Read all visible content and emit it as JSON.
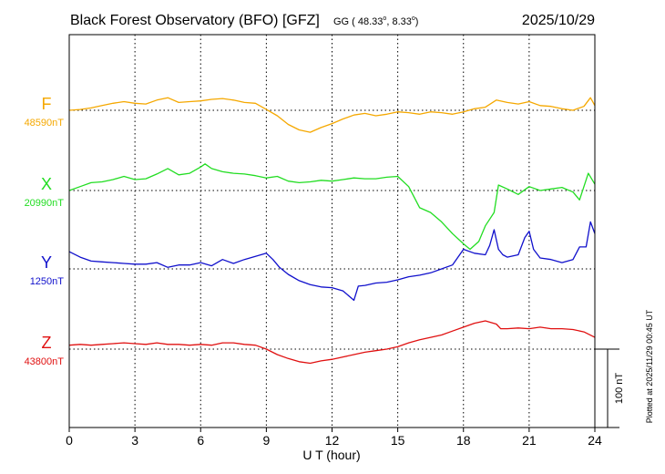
{
  "chart_data": {
    "type": "line",
    "title": "Black Forest Observatory (BFO)  [GFZ]",
    "coords": {
      "prefix": "GG ( 48.33",
      "lon": "8.33"
    },
    "date": "2025/10/29",
    "xlabel": "U T (hour)",
    "xlim": [
      0,
      24
    ],
    "xticks": [
      0,
      3,
      6,
      9,
      12,
      15,
      18,
      21,
      24
    ],
    "grid": true,
    "scale_label": "100 nT",
    "scale_nT": 100,
    "footnote": "Plotted at 2025/11/29 00:45 UT",
    "series": [
      {
        "name": "F",
        "baseline_label": "48590nT",
        "baseline": 48590,
        "color": "#f5a800",
        "x": [
          0,
          0.5,
          1,
          1.5,
          2,
          2.5,
          3,
          3.5,
          4,
          4.5,
          5,
          5.5,
          6,
          6.5,
          7,
          7.5,
          8,
          8.5,
          9,
          9.5,
          10,
          10.5,
          11,
          11.5,
          12,
          12.5,
          13,
          13.5,
          14,
          14.5,
          15,
          15.5,
          16,
          16.5,
          17,
          17.5,
          18,
          18.5,
          19,
          19.5,
          20,
          20.5,
          21,
          21.5,
          22,
          22.5,
          23,
          23.5,
          23.8,
          24
        ],
        "values": [
          48590,
          48591,
          48593,
          48596,
          48599,
          48601,
          48599,
          48598,
          48603,
          48606,
          48600,
          48601,
          48602,
          48604,
          48605,
          48603,
          48600,
          48599,
          48591,
          48583,
          48572,
          48565,
          48562,
          48568,
          48573,
          48579,
          48584,
          48586,
          48583,
          48585,
          48588,
          48587,
          48585,
          48588,
          48587,
          48585,
          48588,
          48592,
          48594,
          48603,
          48600,
          48598,
          48601,
          48596,
          48595,
          48592,
          48590,
          48595,
          48606,
          48596
        ]
      },
      {
        "name": "X",
        "baseline_label": "20990nT",
        "baseline": 20990,
        "color": "#22dd22",
        "x": [
          0,
          0.5,
          1,
          1.5,
          2,
          2.5,
          3,
          3.5,
          4,
          4.5,
          5,
          5.5,
          6,
          6.2,
          6.5,
          7,
          7.5,
          8,
          8.5,
          9,
          9.5,
          10,
          10.5,
          11,
          11.5,
          12,
          12.5,
          13,
          13.5,
          14,
          14.5,
          15,
          15.5,
          16,
          16.5,
          17,
          17.5,
          18,
          18.3,
          18.7,
          19,
          19.4,
          19.6,
          20,
          20.5,
          21,
          21.5,
          22,
          22.5,
          23,
          23.3,
          23.7,
          24
        ],
        "values": [
          20990,
          20995,
          21000,
          21001,
          21004,
          21008,
          21004,
          21005,
          21011,
          21018,
          21010,
          21012,
          21020,
          21024,
          21018,
          21014,
          21012,
          21011,
          21009,
          21006,
          21008,
          21002,
          21000,
          21001,
          21003,
          21002,
          21004,
          21006,
          21005,
          21005,
          21007,
          21008,
          20995,
          20968,
          20962,
          20950,
          20935,
          20922,
          20915,
          20925,
          20945,
          20962,
          20997,
          20992,
          20985,
          20995,
          20990,
          20992,
          20994,
          20988,
          20978,
          21012,
          20998
        ]
      },
      {
        "name": "Y",
        "baseline_label": "1250nT",
        "baseline": 1250,
        "color": "#1010cc",
        "x": [
          0,
          0.5,
          1,
          1.5,
          2,
          2.5,
          3,
          3.5,
          4,
          4.5,
          5,
          5.5,
          6,
          6.5,
          7,
          7.5,
          8,
          8.5,
          9,
          9.3,
          9.6,
          10,
          10.5,
          11,
          11.5,
          12,
          12.5,
          13,
          13.2,
          13.5,
          14,
          14.5,
          15,
          15.5,
          16,
          16.5,
          17,
          17.5,
          18,
          18.5,
          19,
          19.2,
          19.4,
          19.6,
          19.8,
          20,
          20.5,
          20.8,
          21,
          21.2,
          21.5,
          22,
          22.5,
          23,
          23.3,
          23.6,
          23.8,
          24
        ],
        "values": [
          1272,
          1265,
          1260,
          1259,
          1258,
          1257,
          1256,
          1256,
          1258,
          1252,
          1255,
          1255,
          1258,
          1254,
          1262,
          1257,
          1262,
          1266,
          1270,
          1262,
          1252,
          1243,
          1235,
          1230,
          1227,
          1226,
          1222,
          1210,
          1228,
          1229,
          1232,
          1233,
          1236,
          1240,
          1242,
          1245,
          1250,
          1255,
          1275,
          1270,
          1268,
          1280,
          1300,
          1275,
          1268,
          1265,
          1268,
          1290,
          1298,
          1275,
          1264,
          1262,
          1258,
          1262,
          1278,
          1278,
          1310,
          1295
        ]
      },
      {
        "name": "Z",
        "baseline_label": "43800nT",
        "baseline": 43800,
        "color": "#e01010",
        "x": [
          0,
          0.5,
          1,
          1.5,
          2,
          2.5,
          3,
          3.5,
          4,
          4.5,
          5,
          5.5,
          6,
          6.5,
          7,
          7.5,
          8,
          8.5,
          9,
          9.5,
          10,
          10.5,
          11,
          11.5,
          12,
          12.5,
          13,
          13.5,
          14,
          14.5,
          15,
          15.5,
          16,
          16.5,
          17,
          17.5,
          18,
          18.5,
          19,
          19.5,
          19.7,
          20,
          20.5,
          21,
          21.5,
          22,
          22.5,
          23,
          23.5,
          24
        ],
        "values": [
          43805,
          43806,
          43805,
          43806,
          43807,
          43808,
          43807,
          43806,
          43808,
          43806,
          43806,
          43805,
          43806,
          43805,
          43808,
          43808,
          43806,
          43805,
          43800,
          43793,
          43788,
          43784,
          43782,
          43785,
          43787,
          43790,
          43793,
          43796,
          43798,
          43800,
          43803,
          43808,
          43812,
          43815,
          43818,
          43823,
          43828,
          43833,
          43836,
          43832,
          43826,
          43826,
          43827,
          43826,
          43828,
          43826,
          43826,
          43825,
          43822,
          43815
        ]
      }
    ]
  }
}
